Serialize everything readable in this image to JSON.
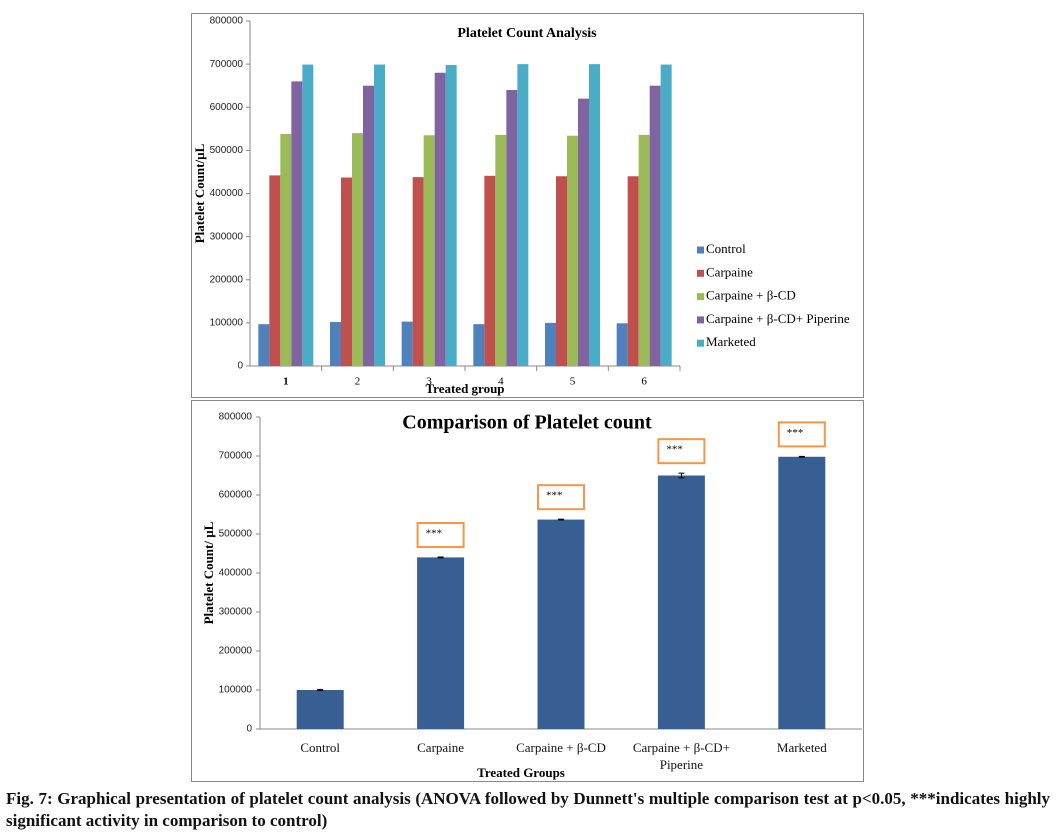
{
  "chart_data": [
    {
      "type": "grouped-bar",
      "title": "Platelet Count Analysis",
      "xlabel": "Treated group",
      "ylabel": "Platelet Count/µL",
      "categories": [
        "1",
        "2",
        "3",
        "4",
        "5",
        "6"
      ],
      "series": [
        {
          "name": "Control",
          "color": "#4f81bd",
          "values": [
            97000,
            102000,
            103000,
            97000,
            100000,
            99000
          ]
        },
        {
          "name": "Carpaine",
          "color": "#c0504d",
          "values": [
            442000,
            437000,
            438000,
            441000,
            440000,
            440000
          ]
        },
        {
          "name": "Carpaine + β-CD",
          "color": "#9bbb59",
          "values": [
            538000,
            540000,
            535000,
            536000,
            534000,
            536000
          ]
        },
        {
          "name": "Carpaine + β-CD+ Piperine",
          "color": "#8064a2",
          "values": [
            660000,
            650000,
            680000,
            640000,
            620000,
            650000
          ]
        },
        {
          "name": "Marketed",
          "color": "#4bacc6",
          "values": [
            699000,
            699000,
            698000,
            700000,
            700000,
            699000
          ]
        }
      ],
      "ylim": [
        0,
        800000
      ],
      "yticks": [
        0,
        100000,
        200000,
        300000,
        400000,
        500000,
        600000,
        700000,
        800000
      ],
      "legend": "right"
    },
    {
      "type": "bar",
      "title": "Comparison of Platelet count",
      "xlabel": "Treated Groups",
      "ylabel": "Platelet Count/ µL",
      "categories": [
        "Control",
        "Carpaine",
        "Carpaine + β-CD",
        "Carpaine + β-CD+ Piperine",
        "Marketed"
      ],
      "values": [
        100000,
        440000,
        537000,
        650000,
        698000
      ],
      "errors": [
        1500,
        1000,
        1000,
        6000,
        1000
      ],
      "annotations": [
        null,
        "***",
        "***",
        "***",
        "***"
      ],
      "color": "#385f93",
      "annotation_color": "#f79646",
      "ylim": [
        0,
        800000
      ],
      "yticks": [
        0,
        100000,
        200000,
        300000,
        400000,
        500000,
        600000,
        700000,
        800000
      ]
    }
  ],
  "caption": "Fig. 7: Graphical presentation of platelet count analysis (ANOVA followed by Dunnett's multiple comparison test at p<0.05, ***indicates highly significant activity in comparison to control)"
}
